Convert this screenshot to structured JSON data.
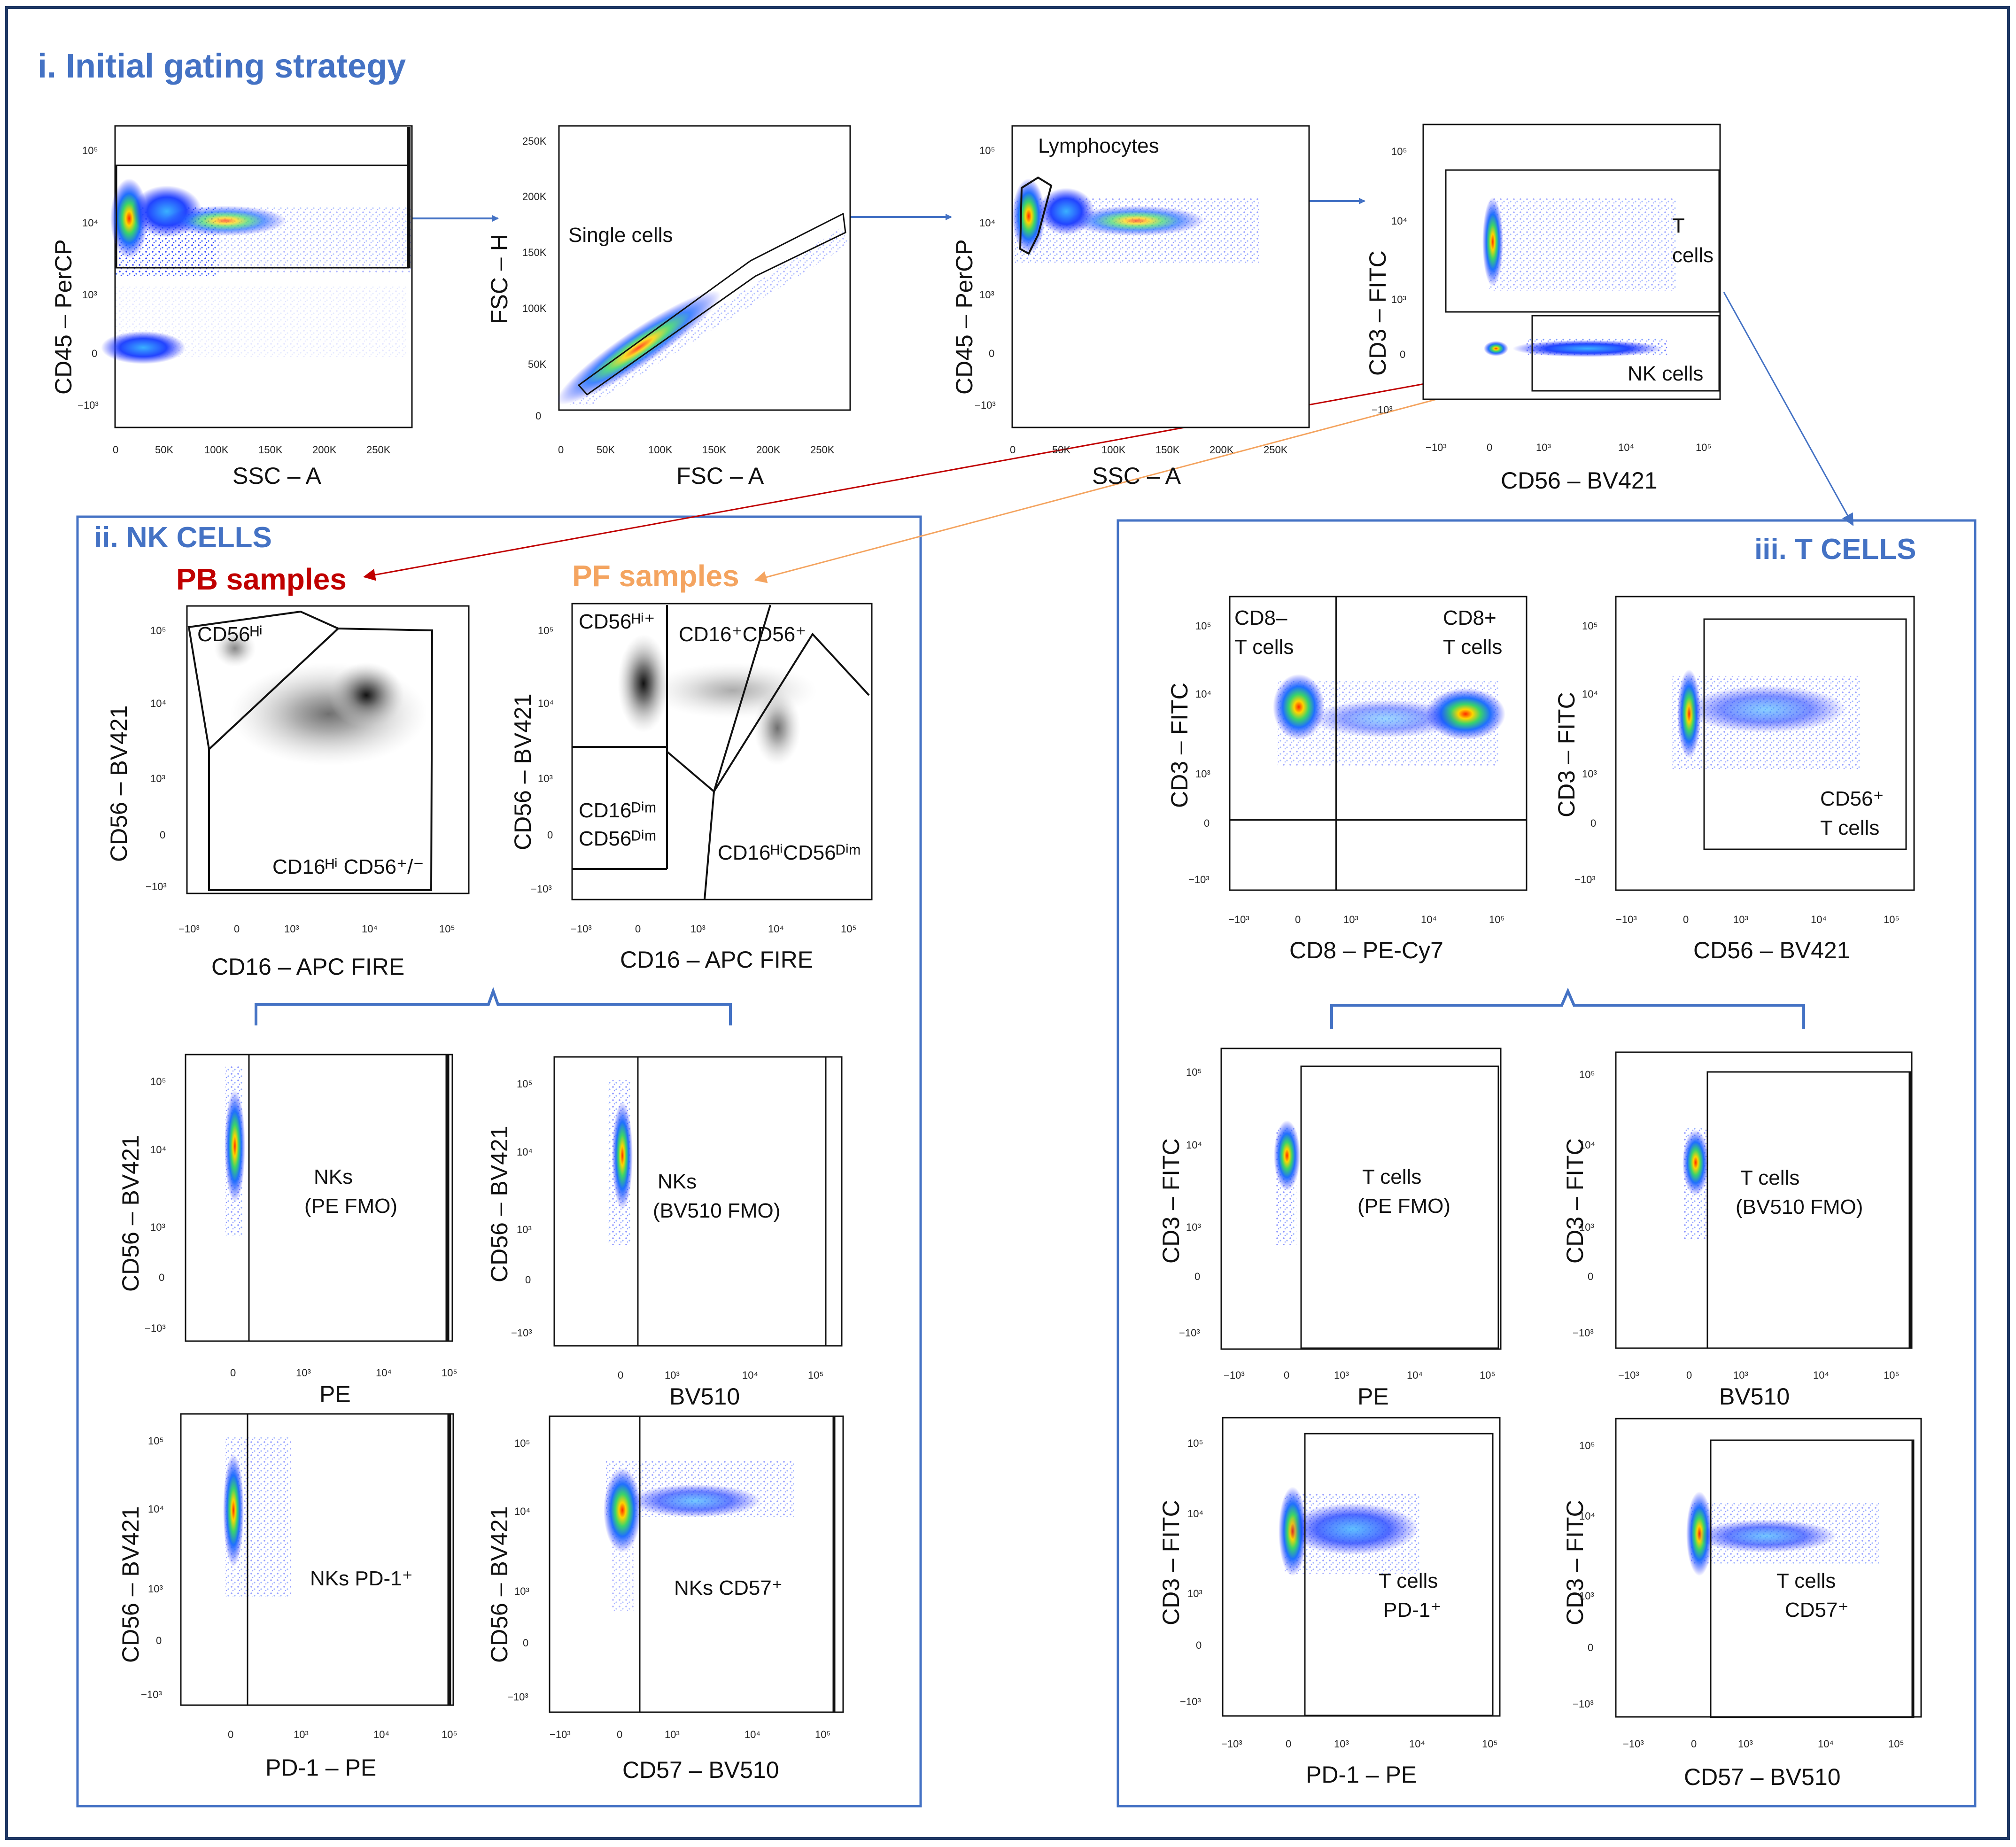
{
  "colors": {
    "accent": "#4472c4",
    "pb": "#c00000",
    "pf": "#f4a460",
    "frame": "#1f3864"
  },
  "sections": {
    "initial": "i. Initial gating strategy",
    "nk": "ii. NK CELLS",
    "t": "iii. T CELLS",
    "pb": "PB samples",
    "pf": "PF samples"
  },
  "ticks": {
    "log_y": [
      "10⁵",
      "10⁴",
      "10³",
      "0",
      "−10³"
    ],
    "log_x": [
      "−10³",
      "0",
      "10³",
      "10⁴",
      "10⁵"
    ],
    "log_x_short": [
      "0",
      "10³",
      "10⁴",
      "10⁵"
    ],
    "lin_x": [
      "0",
      "50K",
      "100K",
      "150K",
      "200K",
      "250K"
    ],
    "lin_y": [
      "250K",
      "200K",
      "150K",
      "100K",
      "50K",
      "0"
    ]
  },
  "panels": [
    {
      "name": "cd45-ssc-panel",
      "x": "SSC – A",
      "y": "CD45 – PerCP",
      "labels": []
    },
    {
      "name": "singlets-panel",
      "x": "FSC – A",
      "y": "FSC – H",
      "labels": [
        "Single cells"
      ]
    },
    {
      "name": "lymphocytes-panel",
      "x": "SSC – A",
      "y": "CD45 – PerCP",
      "labels": [
        "Lymphocytes"
      ]
    },
    {
      "name": "t-nk-panel",
      "x": "CD56 – BV421",
      "y": "CD3 – FITC",
      "labels": [
        "T",
        "cells",
        "NK cells"
      ]
    },
    {
      "name": "nk-pb-panel",
      "x": "CD16 – APC FIRE",
      "y": "CD56 – BV421",
      "labels": [
        "CD56ᴴⁱ",
        "CD16ᴴⁱ CD56⁺/⁻"
      ]
    },
    {
      "name": "nk-pf-panel",
      "x": "CD16 – APC FIRE",
      "y": "CD56 – BV421",
      "labels": [
        "CD56ᴴⁱ⁺",
        "CD16⁺CD56⁺",
        "CD16ᴰⁱᵐ",
        "CD56ᴰⁱᵐ",
        "CD16ᴴⁱCD56ᴰⁱᵐ"
      ]
    },
    {
      "name": "nk-pe-fmo-panel",
      "x": "PE",
      "y": "CD56 – BV421",
      "labels": [
        "NKs",
        "(PE FMO)"
      ]
    },
    {
      "name": "nk-bv510-fmo-panel",
      "x": "BV510",
      "y": "CD56 – BV421",
      "labels": [
        "NKs",
        "(BV510 FMO)"
      ]
    },
    {
      "name": "nk-pd1-panel",
      "x": "PD-1 – PE",
      "y": "CD56 – BV421",
      "labels": [
        "NKs PD-1⁺"
      ]
    },
    {
      "name": "nk-cd57-panel",
      "x": "CD57 – BV510",
      "y": "CD56 – BV421",
      "labels": [
        "NKs CD57⁺"
      ]
    },
    {
      "name": "t-cd8-panel",
      "x": "CD8 – PE-Cy7",
      "y": "CD3 – FITC",
      "labels": [
        "CD8–",
        "T cells",
        "CD8+",
        "T cells"
      ]
    },
    {
      "name": "t-cd56-panel",
      "x": "CD56 – BV421",
      "y": "CD3 – FITC",
      "labels": [
        "CD56⁺",
        "T cells"
      ]
    },
    {
      "name": "t-pe-fmo-panel",
      "x": "PE",
      "y": "CD3 – FITC",
      "labels": [
        "T cells",
        "(PE FMO)"
      ]
    },
    {
      "name": "t-bv510-fmo-panel",
      "x": "BV510",
      "y": "CD3 – FITC",
      "labels": [
        "T cells",
        "(BV510 FMO)"
      ]
    },
    {
      "name": "t-pd1-panel",
      "x": "PD-1 – PE",
      "y": "CD3 – FITC",
      "labels": [
        "T cells",
        "PD-1⁺"
      ]
    },
    {
      "name": "t-cd57-panel",
      "x": "CD57 – BV510",
      "y": "CD3 – FITC",
      "labels": [
        "T cells",
        "CD57⁺"
      ]
    }
  ]
}
